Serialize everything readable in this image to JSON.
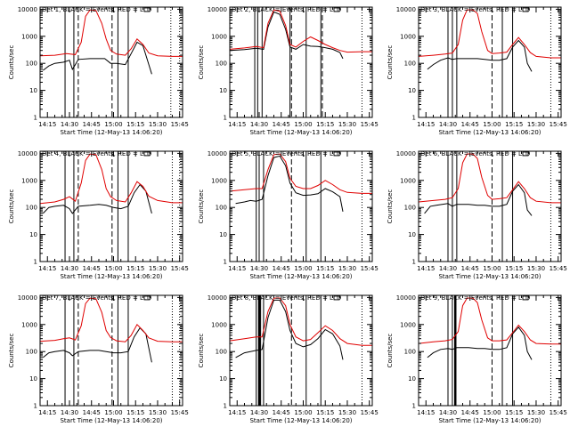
{
  "colors": {
    "events": "#000000",
    "lld": "#e00000",
    "axis": "#000000"
  },
  "chart_data": {
    "type": "line",
    "grid": "off",
    "xscale": "time",
    "yscale": "log",
    "xlim": [
      "14:10",
      "15:47"
    ],
    "ylim": [
      1,
      12000
    ],
    "x_ticks": [
      "14:15",
      "14:30",
      "14:45",
      "15:00",
      "15:15",
      "15:30",
      "15:45"
    ],
    "y_ticks": [
      "1",
      "10",
      "100",
      "1000",
      "10000"
    ],
    "ylabel": "Counts/sec",
    "xlabel": "Start Time (12-May-13 14:06:20)",
    "panels": [
      {
        "title": "Det 1, BLACK = Events, RED = LLD",
        "lld": {
          "t": [
            "14:10",
            "14:20",
            "14:28",
            "14:34",
            "14:38",
            "14:41",
            "14:44",
            "14:48",
            "14:52",
            "14:55",
            "14:58",
            "15:02",
            "15:08",
            "15:12",
            "15:16",
            "15:20",
            "15:24",
            "15:30",
            "15:40",
            "15:47"
          ],
          "v": [
            190,
            200,
            230,
            210,
            600,
            5500,
            9500,
            9000,
            3000,
            800,
            300,
            220,
            200,
            350,
            800,
            500,
            240,
            190,
            180,
            180
          ]
        },
        "events": {
          "t": [
            "14:12",
            "14:16",
            "14:20",
            "14:26",
            "14:30",
            "14:32",
            "14:34",
            "14:36",
            "14:44",
            "14:48",
            "14:54",
            "14:58",
            "15:02",
            "15:08",
            "15:12",
            "15:16",
            "15:20",
            "15:24",
            "15:26"
          ],
          "v": [
            55,
            80,
            100,
            110,
            130,
            60,
            90,
            140,
            150,
            150,
            150,
            100,
            100,
            90,
            230,
            600,
            450,
            90,
            40
          ]
        },
        "solid_lines": [
          "14:27",
          "14:33",
          "15:03",
          "15:10"
        ],
        "thick_lines": [],
        "dashed_lines": [
          "14:36",
          "14:59"
        ],
        "dotted_lines": [
          "15:39",
          "15:45"
        ]
      },
      {
        "title": "Det 2, BLACK = Events, RED = LLD",
        "lld": {
          "t": [
            "14:10",
            "14:20",
            "14:28",
            "14:33",
            "14:36",
            "14:40",
            "14:44",
            "14:48",
            "14:51",
            "14:55",
            "15:00",
            "15:05",
            "15:10",
            "15:15",
            "15:20",
            "15:25",
            "15:30",
            "15:40",
            "15:47"
          ],
          "v": [
            330,
            370,
            420,
            380,
            3000,
            9500,
            8500,
            2500,
            500,
            400,
            650,
            950,
            700,
            500,
            380,
            300,
            260,
            270,
            270
          ]
        },
        "events": {
          "t": [
            "14:10",
            "14:20",
            "14:28",
            "14:33",
            "14:36",
            "14:40",
            "14:44",
            "14:48",
            "14:51",
            "14:55",
            "15:00",
            "15:05",
            "15:10",
            "15:15",
            "15:20",
            "15:25",
            "15:27"
          ],
          "v": [
            300,
            320,
            360,
            330,
            2200,
            8000,
            6500,
            1800,
            400,
            330,
            500,
            430,
            420,
            380,
            330,
            250,
            150
          ]
        },
        "solid_lines": [
          "14:27",
          "14:29",
          "14:32",
          "14:51",
          "15:02",
          "15:12"
        ],
        "thick_lines": [],
        "dashed_lines": [
          "14:52",
          "15:13"
        ],
        "dotted_lines": [
          "15:40"
        ]
      },
      {
        "title": "Det 3, BLACK = Events, RED = LLD",
        "lld": {
          "t": [
            "14:10",
            "14:20",
            "14:28",
            "14:33",
            "14:37",
            "14:40",
            "14:43",
            "14:47",
            "14:50",
            "14:53",
            "14:57",
            "15:00",
            "15:05",
            "15:10",
            "15:14",
            "15:18",
            "15:22",
            "15:26",
            "15:30",
            "15:40",
            "15:47"
          ],
          "v": [
            180,
            200,
            220,
            240,
            500,
            4000,
            9500,
            9500,
            7000,
            1500,
            300,
            230,
            240,
            260,
            500,
            900,
            500,
            250,
            180,
            160,
            160
          ]
        },
        "events": {
          "t": [
            "14:16",
            "14:20",
            "14:25",
            "14:30",
            "14:33",
            "14:36",
            "14:44",
            "14:50",
            "14:55",
            "15:00",
            "15:05",
            "15:10",
            "15:14",
            "15:18",
            "15:22",
            "15:24",
            "15:27"
          ],
          "v": [
            60,
            90,
            130,
            160,
            140,
            150,
            150,
            150,
            140,
            130,
            130,
            150,
            400,
            700,
            400,
            100,
            50
          ]
        },
        "solid_lines": [
          "14:30",
          "14:33",
          "14:36",
          "15:07",
          "15:14"
        ],
        "thick_lines": [],
        "dashed_lines": [
          "15:00"
        ],
        "dotted_lines": [
          "15:40"
        ]
      },
      {
        "title": "Det 4, BLACK = Events, RED = LLD",
        "lld": {
          "t": [
            "14:10",
            "14:20",
            "14:26",
            "14:30",
            "14:34",
            "14:38",
            "14:41",
            "14:44",
            "14:48",
            "14:52",
            "14:55",
            "14:58",
            "15:02",
            "15:08",
            "15:12",
            "15:16",
            "15:20",
            "15:24",
            "15:30",
            "15:40",
            "15:47"
          ],
          "v": [
            140,
            160,
            200,
            250,
            170,
            800,
            5500,
            9500,
            9000,
            2500,
            500,
            250,
            180,
            160,
            350,
            900,
            600,
            260,
            180,
            150,
            150
          ]
        },
        "events": {
          "t": [
            "14:12",
            "14:16",
            "14:20",
            "14:26",
            "14:30",
            "14:32",
            "14:36",
            "14:44",
            "14:50",
            "14:55",
            "15:00",
            "15:05",
            "15:10",
            "15:14",
            "15:18",
            "15:22",
            "15:26"
          ],
          "v": [
            60,
            100,
            110,
            120,
            90,
            60,
            110,
            120,
            130,
            120,
            100,
            90,
            110,
            350,
            700,
            400,
            60
          ]
        },
        "solid_lines": [
          "14:27",
          "14:33",
          "15:03",
          "15:10"
        ],
        "thick_lines": [],
        "dashed_lines": [
          "14:36",
          "14:59"
        ],
        "dotted_lines": [
          "15:40",
          "15:45"
        ]
      },
      {
        "title": "Det 5, BLACK = Events, RED = LLD",
        "lld": {
          "t": [
            "14:10",
            "14:20",
            "14:28",
            "14:32",
            "14:36",
            "14:40",
            "14:44",
            "14:48",
            "14:51",
            "14:55",
            "15:00",
            "15:05",
            "15:10",
            "15:15",
            "15:20",
            "15:25",
            "15:30",
            "15:40",
            "15:47"
          ],
          "v": [
            400,
            450,
            500,
            500,
            2500,
            9000,
            9500,
            5000,
            1200,
            600,
            500,
            500,
            650,
            1000,
            700,
            450,
            360,
            330,
            330
          ]
        },
        "events": {
          "t": [
            "14:14",
            "14:20",
            "14:24",
            "14:28",
            "14:32",
            "14:36",
            "14:40",
            "14:44",
            "14:48",
            "14:51",
            "14:55",
            "15:00",
            "15:05",
            "15:10",
            "15:15",
            "15:20",
            "15:25",
            "15:27"
          ],
          "v": [
            140,
            160,
            180,
            170,
            200,
            1500,
            7000,
            8000,
            3500,
            800,
            350,
            280,
            290,
            320,
            500,
            380,
            250,
            70
          ]
        },
        "solid_lines": [
          "14:28",
          "14:30",
          "14:33",
          "15:02",
          "15:12"
        ],
        "thick_lines": [],
        "dashed_lines": [
          "14:52"
        ],
        "dotted_lines": [
          "15:40"
        ]
      },
      {
        "title": "Det 6, BLACK = Events, RED = LLD",
        "lld": {
          "t": [
            "14:10",
            "14:20",
            "14:28",
            "14:33",
            "14:37",
            "14:40",
            "14:43",
            "14:47",
            "14:50",
            "14:53",
            "14:57",
            "15:00",
            "15:05",
            "15:10",
            "15:14",
            "15:18",
            "15:22",
            "15:26",
            "15:30",
            "15:40",
            "15:47"
          ],
          "v": [
            160,
            180,
            200,
            230,
            500,
            4500,
            9500,
            9500,
            6500,
            1300,
            280,
            200,
            210,
            230,
            450,
            900,
            500,
            230,
            170,
            150,
            150
          ]
        },
        "events": {
          "t": [
            "14:14",
            "14:18",
            "14:22",
            "14:26",
            "14:30",
            "14:33",
            "14:36",
            "14:44",
            "14:50",
            "14:55",
            "15:00",
            "15:05",
            "15:10",
            "15:14",
            "15:18",
            "15:22",
            "15:24",
            "15:27"
          ],
          "v": [
            60,
            110,
            120,
            130,
            140,
            110,
            130,
            130,
            120,
            120,
            110,
            110,
            130,
            400,
            700,
            350,
            80,
            50
          ]
        },
        "solid_lines": [
          "14:30",
          "14:33",
          "14:36",
          "15:07",
          "15:14"
        ],
        "thick_lines": [],
        "dashed_lines": [
          "15:00"
        ],
        "dotted_lines": [
          "15:40"
        ]
      },
      {
        "title": "Det 7, BLACK = Events, RED = LLD",
        "lld": {
          "t": [
            "14:10",
            "14:20",
            "14:26",
            "14:30",
            "14:34",
            "14:38",
            "14:41",
            "14:44",
            "14:48",
            "14:52",
            "14:55",
            "14:58",
            "15:02",
            "15:08",
            "15:12",
            "15:16",
            "15:20",
            "15:24",
            "15:30",
            "15:40",
            "15:47"
          ],
          "v": [
            240,
            260,
            300,
            320,
            270,
            900,
            6000,
            9500,
            9000,
            2800,
            600,
            330,
            250,
            230,
            400,
            1000,
            600,
            320,
            240,
            230,
            230
          ]
        },
        "events": {
          "t": [
            "14:12",
            "14:16",
            "14:20",
            "14:26",
            "14:30",
            "14:32",
            "14:36",
            "14:44",
            "14:50",
            "14:55",
            "15:00",
            "15:05",
            "15:10",
            "15:14",
            "15:18",
            "15:22",
            "15:26"
          ],
          "v": [
            60,
            90,
            100,
            110,
            90,
            70,
            100,
            110,
            110,
            100,
            90,
            90,
            100,
            350,
            750,
            450,
            40
          ]
        },
        "solid_lines": [
          "14:27",
          "14:33",
          "15:03",
          "15:10"
        ],
        "thick_lines": [],
        "dashed_lines": [
          "14:36",
          "14:59"
        ],
        "dotted_lines": [
          "15:40",
          "15:45"
        ]
      },
      {
        "title": "Det 8, BLACK = Events, RED = LLD",
        "lld": {
          "t": [
            "14:10",
            "14:20",
            "14:28",
            "14:32",
            "14:36",
            "14:40",
            "14:44",
            "14:48",
            "14:51",
            "14:55",
            "15:00",
            "15:05",
            "15:10",
            "15:15",
            "15:20",
            "15:25",
            "15:30",
            "15:40",
            "15:47"
          ],
          "v": [
            250,
            300,
            350,
            350,
            3000,
            9500,
            9500,
            5000,
            1000,
            350,
            250,
            280,
            500,
            900,
            600,
            300,
            200,
            170,
            170
          ]
        },
        "events": {
          "t": [
            "14:14",
            "14:20",
            "14:24",
            "14:28",
            "14:32",
            "14:36",
            "14:40",
            "14:44",
            "14:48",
            "14:51",
            "14:55",
            "15:00",
            "15:05",
            "15:10",
            "15:15",
            "15:20",
            "15:25",
            "15:27"
          ],
          "v": [
            60,
            90,
            100,
            110,
            120,
            1800,
            8000,
            8000,
            3000,
            600,
            200,
            150,
            180,
            300,
            650,
            450,
            160,
            50
          ]
        },
        "solid_lines": [
          "14:28",
          "14:31",
          "14:33",
          "15:02",
          "15:12"
        ],
        "thick_lines": [
          "14:30"
        ],
        "dashed_lines": [
          "14:52"
        ],
        "dotted_lines": [
          "15:40"
        ]
      },
      {
        "title": "Det 9, BLACK = Events, RED = LLD",
        "lld": {
          "t": [
            "14:10",
            "14:20",
            "14:28",
            "14:33",
            "14:37",
            "14:40",
            "14:43",
            "14:47",
            "14:50",
            "14:53",
            "14:57",
            "15:00",
            "15:05",
            "15:10",
            "15:14",
            "15:18",
            "15:22",
            "15:26",
            "15:30",
            "15:40",
            "15:47"
          ],
          "v": [
            200,
            230,
            250,
            280,
            550,
            5000,
            9500,
            9500,
            6500,
            1500,
            320,
            250,
            250,
            270,
            500,
            950,
            550,
            270,
            200,
            190,
            190
          ]
        },
        "events": {
          "t": [
            "14:16",
            "14:20",
            "14:25",
            "14:30",
            "14:33",
            "14:36",
            "14:44",
            "14:50",
            "14:55",
            "15:00",
            "15:05",
            "15:10",
            "15:14",
            "15:18",
            "15:22",
            "15:24",
            "15:27"
          ],
          "v": [
            60,
            90,
            120,
            130,
            120,
            140,
            140,
            130,
            130,
            120,
            120,
            140,
            450,
            800,
            400,
            100,
            50
          ]
        },
        "solid_lines": [
          "14:30",
          "14:33",
          "15:07",
          "15:14"
        ],
        "thick_lines": [
          "14:35"
        ],
        "dashed_lines": [
          "15:00"
        ],
        "dotted_lines": [
          "15:40"
        ]
      }
    ]
  }
}
